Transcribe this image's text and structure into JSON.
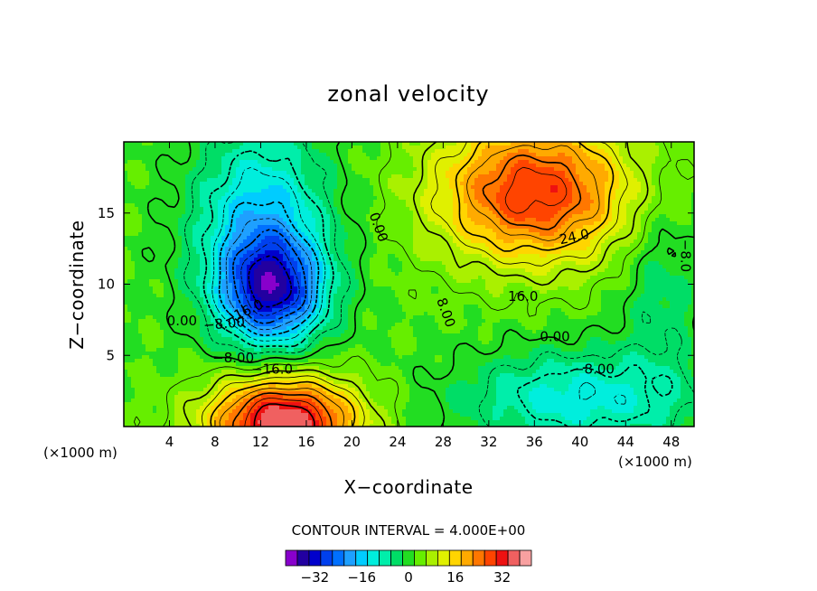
{
  "chart_data": {
    "type": "contour",
    "title": "zonal velocity",
    "xlabel": "X−coordinate",
    "ylabel": "Z−coordinate",
    "x_unit": "(×1000 m)",
    "y_unit": "(×1000 m)",
    "xlim": [
      0,
      50
    ],
    "ylim": [
      0,
      20
    ],
    "x_ticks": [
      4,
      8,
      12,
      16,
      20,
      24,
      28,
      32,
      36,
      40,
      44,
      48
    ],
    "y_ticks": [
      5,
      10,
      15
    ],
    "contour_interval_text": "CONTOUR INTERVAL = 4.000E+00",
    "contour_labels": [
      {
        "text": "0.00",
        "x": 22.3,
        "y": 14.0,
        "rotate": 70
      },
      {
        "text": "24.0",
        "x": 39.5,
        "y": 13.3,
        "rotate": -12
      },
      {
        "text": "−8.0",
        "x": 49.2,
        "y": 12.0,
        "rotate": 90
      },
      {
        "text": "16.0",
        "x": 35.0,
        "y": 9.1,
        "rotate": 0
      },
      {
        "text": "8.00",
        "x": 28.2,
        "y": 8.0,
        "rotate": 70
      },
      {
        "text": "0.00",
        "x": 37.8,
        "y": 6.3,
        "rotate": 0
      },
      {
        "text": "−8.00",
        "x": 41.2,
        "y": 4.0,
        "rotate": 0
      },
      {
        "text": "0.00",
        "x": 5.1,
        "y": 7.4,
        "rotate": 0
      },
      {
        "text": "−8.00",
        "x": 8.8,
        "y": 7.2,
        "rotate": -5
      },
      {
        "text": "−16.0",
        "x": 10.5,
        "y": 8.0,
        "rotate": -25
      },
      {
        "text": "−8.00",
        "x": 9.6,
        "y": 4.8,
        "rotate": 0
      },
      {
        "text": "−16.0",
        "x": 13.0,
        "y": 4.0,
        "rotate": 0
      }
    ],
    "extrema": [
      {
        "kind": "min",
        "x": 13.0,
        "y": 9.5,
        "value": -30
      },
      {
        "kind": "max",
        "x": 36.0,
        "y": 16.5,
        "value": 28
      },
      {
        "kind": "max",
        "x": 14.0,
        "y": 0.3,
        "value": 36
      }
    ],
    "colorbar": {
      "levels": [
        -40,
        -36,
        -32,
        -28,
        -24,
        -20,
        -16,
        -12,
        -8,
        -4,
        0,
        4,
        8,
        12,
        16,
        20,
        24,
        28,
        32,
        36,
        40
      ],
      "tick_labels": [
        "−32",
        "−16",
        "0",
        "16",
        "32"
      ],
      "tick_values": [
        -32,
        -16,
        0,
        16,
        32
      ],
      "colors": [
        "#8800cc",
        "#2200a0",
        "#0000cc",
        "#0040ee",
        "#0070ff",
        "#1ea0ff",
        "#00ccff",
        "#00eedd",
        "#00eeaa",
        "#00dd66",
        "#22dd22",
        "#66ee00",
        "#aaf000",
        "#e0f000",
        "#ffd500",
        "#ffaa00",
        "#ff7700",
        "#ff4400",
        "#ee1111",
        "#f06060",
        "#f8a0a0"
      ]
    }
  }
}
